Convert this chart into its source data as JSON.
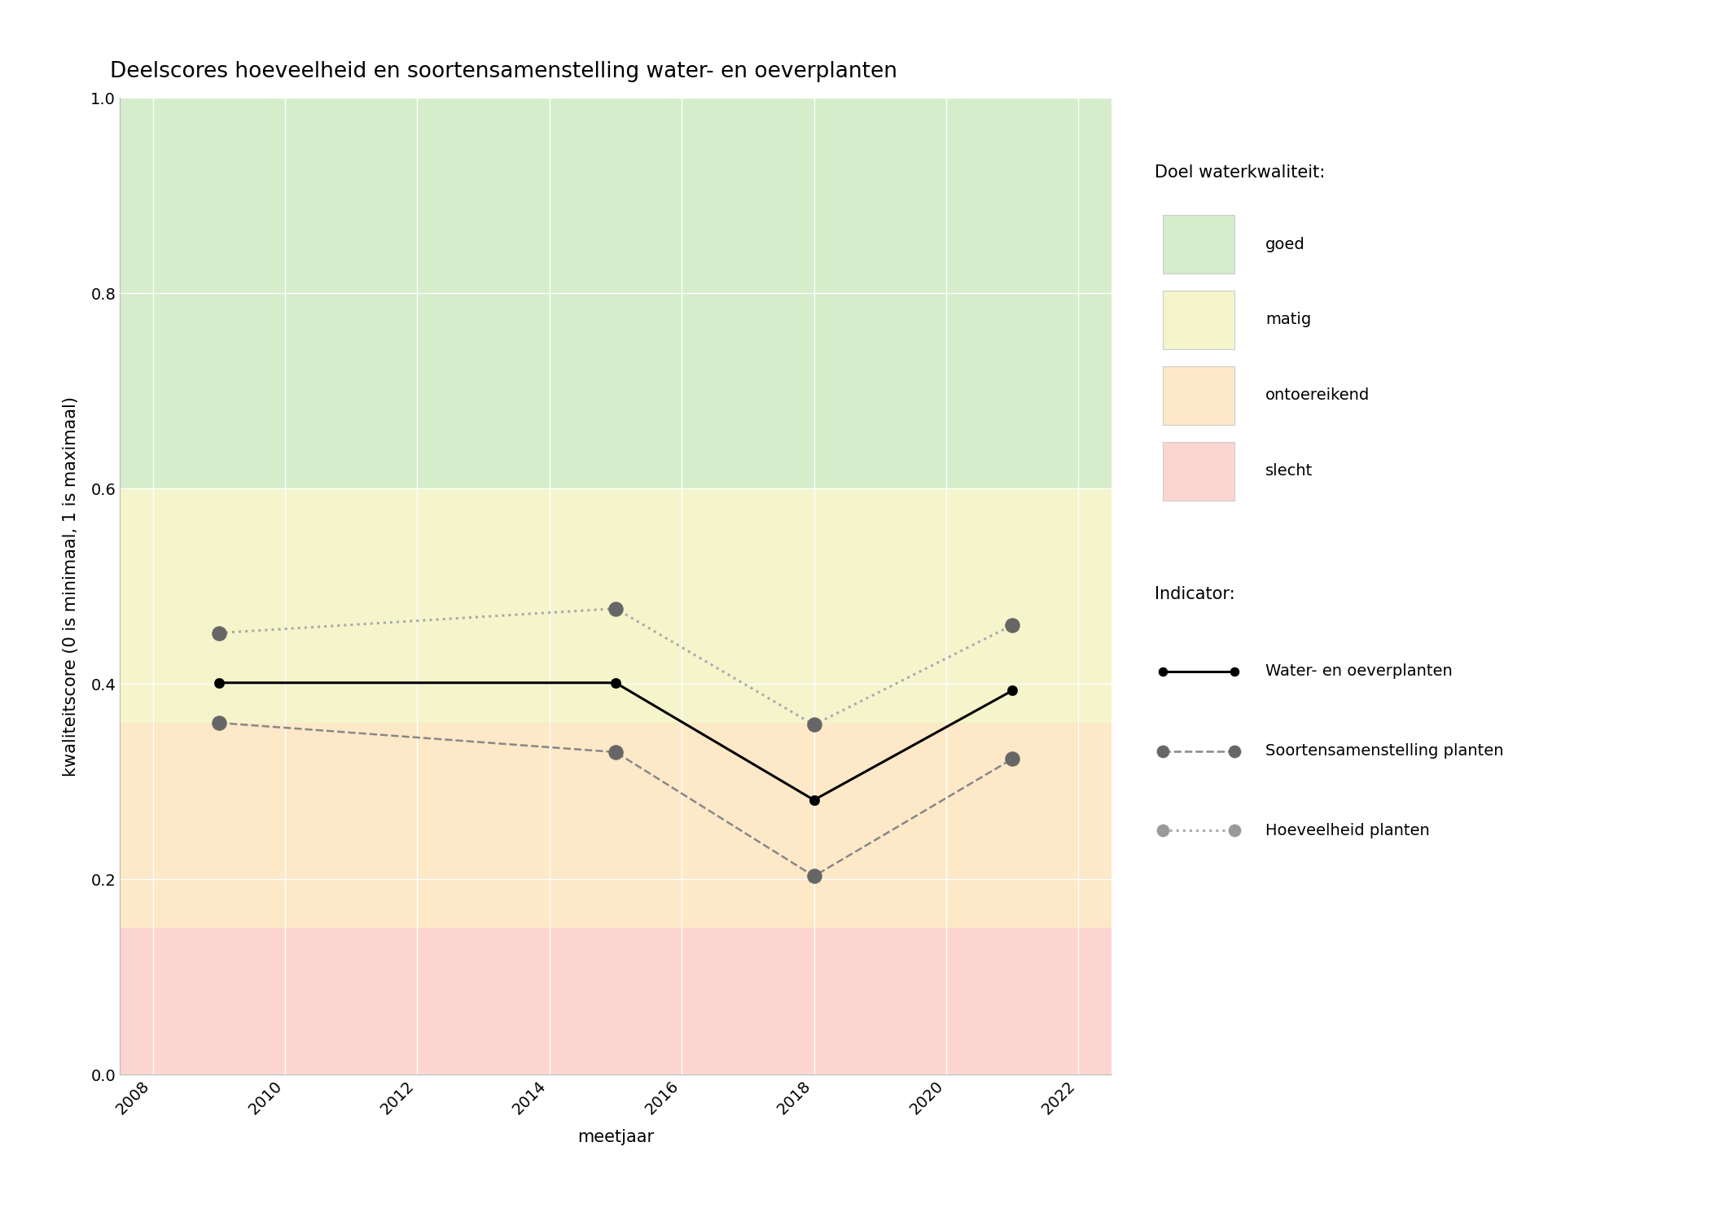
{
  "title": "Deelscores hoeveelheid en soortensamenstelling water- en oeverplanten",
  "xlabel": "meetjaar",
  "ylabel": "kwaliteitscore (0 is minimaal, 1 is maximaal)",
  "xlim": [
    2007.5,
    2022.5
  ],
  "ylim": [
    0.0,
    1.0
  ],
  "xticks": [
    2008,
    2010,
    2012,
    2014,
    2016,
    2018,
    2020,
    2022
  ],
  "yticks": [
    0.0,
    0.2,
    0.4,
    0.6,
    0.8,
    1.0
  ],
  "background_color": "#ffffff",
  "quality_bands": [
    {
      "ymin": 0.6,
      "ymax": 1.0,
      "color": "#d5edca",
      "label": "goed"
    },
    {
      "ymin": 0.36,
      "ymax": 0.6,
      "color": "#f5f5cc",
      "label": "matig"
    },
    {
      "ymin": 0.15,
      "ymax": 0.36,
      "color": "#fde8c8",
      "label": "ontoereikend"
    },
    {
      "ymin": 0.0,
      "ymax": 0.15,
      "color": "#fcd5d0",
      "label": "slecht"
    }
  ],
  "series": [
    {
      "label": "Water- en oeverplanten",
      "years": [
        2009,
        2015,
        2018,
        2021
      ],
      "values": [
        0.401,
        0.401,
        0.281,
        0.393
      ],
      "color": "#000000",
      "linestyle": "solid",
      "linewidth": 2.2,
      "marker": "o",
      "markersize": 9,
      "markerfacecolor": "#000000",
      "markeredgecolor": "#000000",
      "zorder": 5
    },
    {
      "label": "Soortensamenstelling planten",
      "years": [
        2009,
        2015,
        2018,
        2021
      ],
      "values": [
        0.36,
        0.33,
        0.203,
        0.323
      ],
      "color": "#888888",
      "linestyle": "dashed",
      "linewidth": 1.8,
      "marker": "o",
      "markersize": 13,
      "markerfacecolor": "#666666",
      "markeredgecolor": "#666666",
      "zorder": 4
    },
    {
      "label": "Hoeveelheid planten",
      "years": [
        2009,
        2015,
        2018,
        2021
      ],
      "values": [
        0.452,
        0.477,
        0.358,
        0.46
      ],
      "color": "#aaaaaa",
      "linestyle": "dotted",
      "linewidth": 2.2,
      "marker": "o",
      "markersize": 13,
      "markerfacecolor": "#666666",
      "markeredgecolor": "#666666",
      "zorder": 4
    }
  ],
  "legend_quality_title": "Doel waterkwaliteit:",
  "legend_indicator_title": "Indicator:",
  "title_fontsize": 19,
  "axis_label_fontsize": 15,
  "tick_fontsize": 14,
  "legend_fontsize": 14,
  "legend_title_fontsize": 15
}
